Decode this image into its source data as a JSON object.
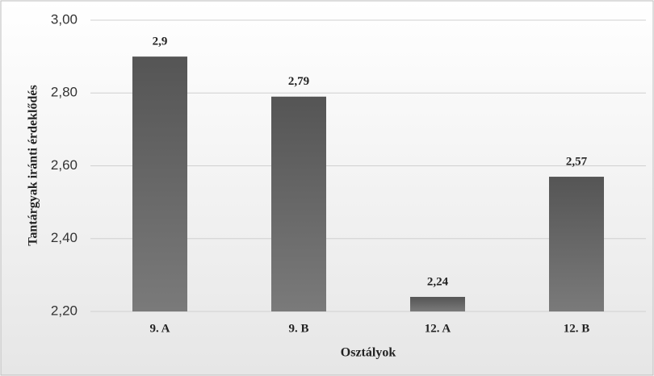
{
  "chart_data": {
    "type": "bar",
    "x_label": "Osztályok",
    "y_label": "Tantárgyak iránti érdeklődés",
    "categories": [
      "9. A",
      "9. B",
      "12. A",
      "12. B"
    ],
    "values": [
      2.9,
      2.79,
      2.24,
      2.57
    ],
    "value_labels": [
      "2,9",
      "2,79",
      "2,24",
      "2,57"
    ],
    "color": "#5e5e5e",
    "ylim": [
      2.2,
      3.0
    ],
    "yticks": [
      {
        "value": 2.2,
        "label": "2,20"
      },
      {
        "value": 2.4,
        "label": "2,40"
      },
      {
        "value": 2.6,
        "label": "2,60"
      },
      {
        "value": 2.8,
        "label": "2,80"
      },
      {
        "value": 3.0,
        "label": "3,00"
      }
    ],
    "grid": true
  }
}
